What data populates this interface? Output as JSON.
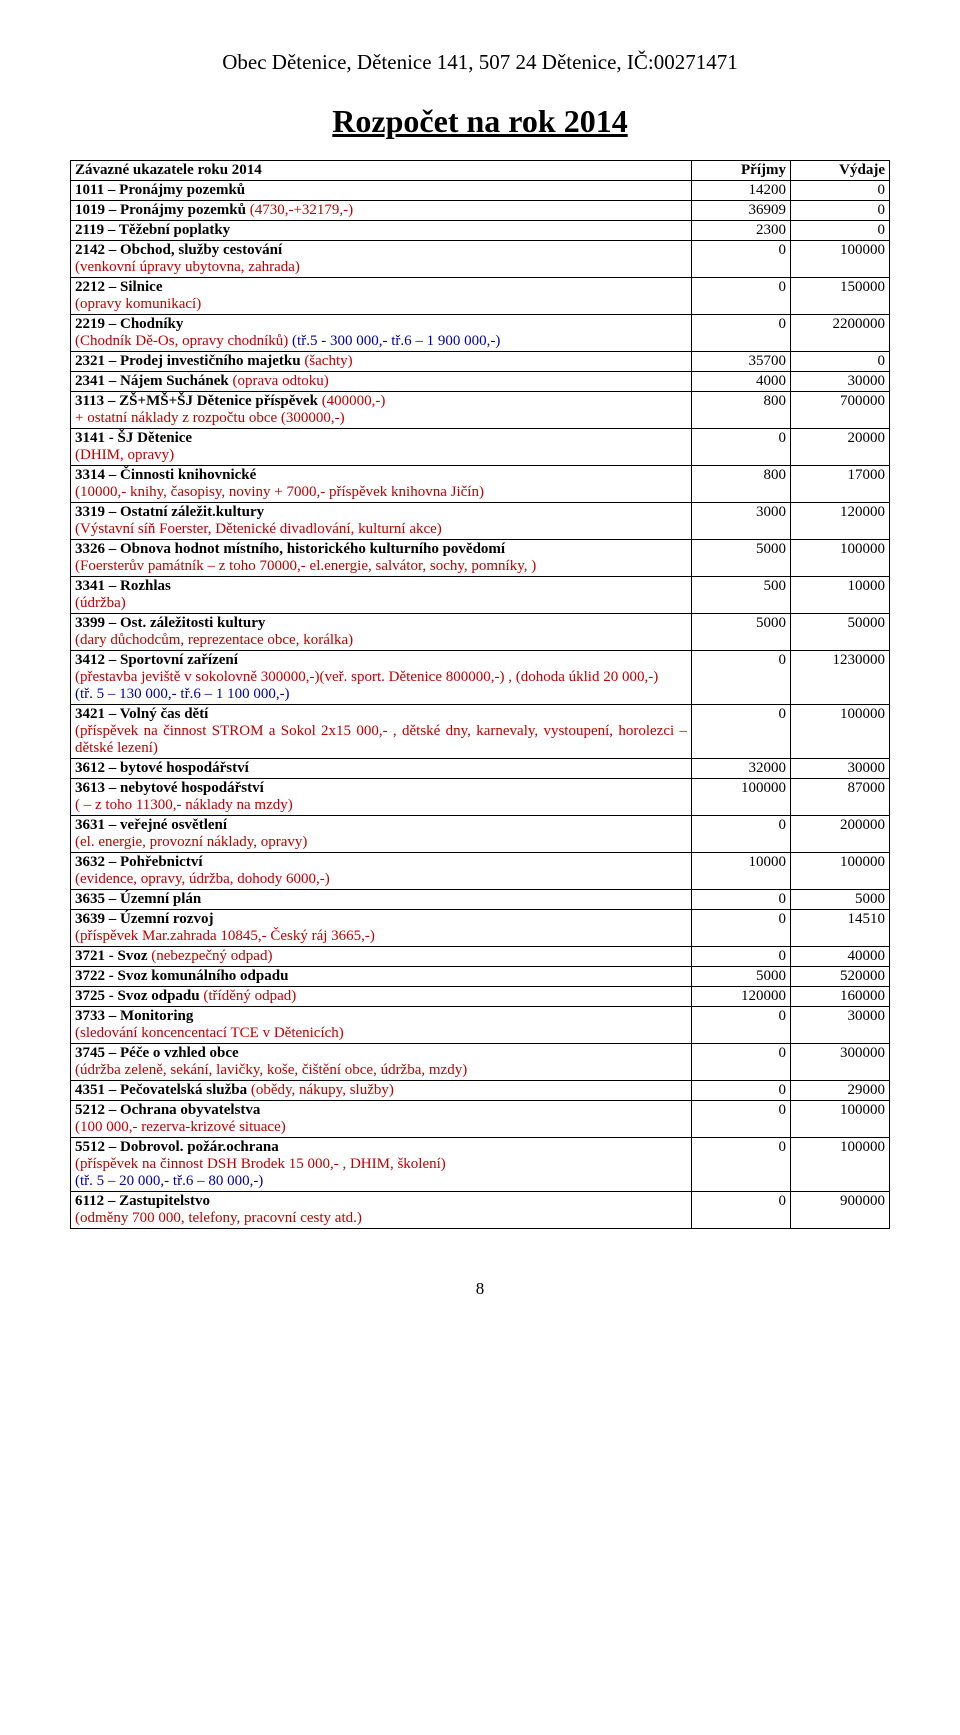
{
  "org": "Obec Dětenice, Dětenice 141, 507 24 Dětenice, IČ:00271471",
  "title": "Rozpočet  na rok  2014",
  "hdr": {
    "a": "Závazné ukazatele roku 2014",
    "b": "Příjmy",
    "c": "Výdaje"
  },
  "r1011": {
    "a": "1011 – Pronájmy pozemků",
    "b": "14200",
    "c": "0"
  },
  "r1019": {
    "a": "1019 – Pronájmy pozemků ",
    "ar": "(4730,-+32179,-)",
    "b": "36909",
    "c": "0"
  },
  "r2119": {
    "a": "2119 – Těžební poplatky",
    "b": "2300",
    "c": "0"
  },
  "r2142": {
    "a": "2142 – Obchod, služby cestování",
    "ar": "(venkovní úpravy ubytovna, zahrada)",
    "b": "0",
    "c": "100000"
  },
  "r2212": {
    "a": "2212 – Silnice",
    "ar": "(opravy komunikací)",
    "b": "0",
    "c": "150000"
  },
  "r2219": {
    "a": "2219 – Chodníky",
    "ar1": "(Chodník Dě-Os, opravy  chodníků)",
    "ab1": " (tř.5 - 300 000,-   tř.6 – 1 900 000,-)",
    "b": "0",
    "c": "2200000"
  },
  "r2321": {
    "a": "2321 – Prodej investičního majetku ",
    "ar": "(šachty)",
    "b": "35700",
    "c": "0"
  },
  "r2341": {
    "a": "2341 – Nájem Suchánek ",
    "ar": "(oprava odtoku)",
    "b": "4000",
    "c": "30000"
  },
  "r3113": {
    "a": "3113 – ZŠ+MŠ+ŠJ Dětenice příspěvek ",
    "ar1": "(400000,-)",
    "ar2": "+ ostatní náklady z rozpočtu obce (300000,-)",
    "b": "800",
    "c": "700000"
  },
  "r3141": {
    "a": "3141 - ŠJ Dětenice",
    "ar": "(DHIM, opravy)",
    "b": "0",
    "c": "20000"
  },
  "r3314": {
    "a": "3314 – Činnosti knihovnické",
    "ar": "(10000,- knihy, časopisy, noviny + 7000,- příspěvek knihovna Jičín)",
    "b": "800",
    "c": "17000"
  },
  "r3319": {
    "a": "3319 – Ostatní záležit.kultury",
    "ar": "(Výstavní síň Foerster,  Dětenické divadlování, kulturní akce)",
    "b": "3000",
    "c": "120000"
  },
  "r3326": {
    "a": "3326 – Obnova hodnot místního, historického kulturního povědomí",
    "ar": "(Foersterův památník  – z toho 70000,- el.energie, salvátor, sochy, pomníky, )",
    "b": "5000",
    "c": "100000"
  },
  "r3341": {
    "a": "3341 – Rozhlas",
    "ar": "(údržba)",
    "b": "500",
    "c": "10000"
  },
  "r3399": {
    "a": "3399 – Ost. záležitosti kultury",
    "ar": "(dary důchodcům, reprezentace obce, korálka)",
    "b": "5000",
    "c": "50000"
  },
  "r3412": {
    "a": "3412 – Sportovní zařízení",
    "ar1": "(přestavba jeviště v sokolovně 300000,-)(veř. sport. Dětenice 800000,-) , (dohoda úklid 20 000,-)",
    "ab": " (tř. 5 – 130 000,-   tř.6 – 1 100 000,-)",
    "b": "0",
    "c": "1230000"
  },
  "r3421": {
    "a": "3421 – Volný čas dětí",
    "ar": "(příspěvek na činnost STROM a Sokol 2x15 000,- , dětské dny, karnevaly, vystoupení, horolezci – dětské lezení)",
    "b": "0",
    "c": "100000"
  },
  "r3612": {
    "a": "3612 – bytové hospodářství",
    "b": "32000",
    "c": "30000"
  },
  "r3613": {
    "a": "3613 – nebytové hospodářství",
    "ar": "( – z toho 11300,- náklady na mzdy)",
    "b": "100000",
    "c": "87000"
  },
  "r3631": {
    "a": "3631 – veřejné osvětlení",
    "ar": "(el. energie, provozní náklady, opravy)",
    "b": "0",
    "c": "200000"
  },
  "r3632": {
    "a": "3632 – Pohřebnictví",
    "ar": "(evidence, opravy, údržba, dohody 6000,-)",
    "b": "10000",
    "c": "100000"
  },
  "r3635": {
    "a": "3635 – Územní plán",
    "b": "0",
    "c": "5000"
  },
  "r3639": {
    "a": "3639 – Územní rozvoj",
    "ar": "(příspěvek Mar.zahrada 10845,- Český ráj 3665,-)",
    "b": "0",
    "c": "14510"
  },
  "r3721": {
    "a": "3721 - Svoz ",
    "ar": "(nebezpečný odpad)",
    "b": "0",
    "c": "40000"
  },
  "r3722": {
    "a": "3722 - Svoz komunálního odpadu",
    "b": "5000",
    "c": "520000"
  },
  "r3725": {
    "a": "3725 - Svoz odpadu ",
    "ar": "(tříděný odpad)",
    "b": "120000",
    "c": "160000"
  },
  "r3733": {
    "a": "3733 – Monitoring",
    "ar": "(sledování koncencentací TCE v Dětenicích)",
    "b": "0",
    "c": "30000"
  },
  "r3745": {
    "a": "3745 – Péče o vzhled obce",
    "ar": "(údržba zeleně, sekání, lavičky, koše, čištění obce, údržba, mzdy)",
    "b": "0",
    "c": "300000"
  },
  "r4351": {
    "a": "4351 – Pečovatelská služba ",
    "ar": "(obědy, nákupy, služby)",
    "b": "0",
    "c": "29000"
  },
  "r5212": {
    "a": "5212 – Ochrana obyvatelstva",
    "ar": "(100 000,- rezerva-krizové situace)",
    "b": "0",
    "c": "100000"
  },
  "r5512": {
    "a": "5512 – Dobrovol. požár.ochrana",
    "ar": "(příspěvek na činnost DSH Brodek 15 000,- , DHIM, školení)",
    "ab": "(tř. 5 – 20 000,-   tř.6 – 80 000,-)",
    "b": "0",
    "c": "100000"
  },
  "r6112": {
    "a": "6112 – Zastupitelstvo",
    "ar": "(odměny 700 000, telefony, pracovní cesty atd.)",
    "b": "0",
    "c": "900000"
  },
  "pagenum": "8"
}
